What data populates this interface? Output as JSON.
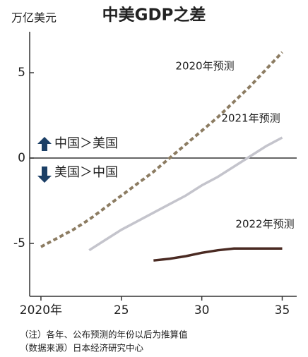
{
  "chart_data": {
    "type": "line",
    "title": "中美GDP之差",
    "y_label": "万亿美元",
    "x": [
      2020,
      2021,
      2022,
      2023,
      2024,
      2025,
      2026,
      2027,
      2028,
      2029,
      2030,
      2031,
      2032,
      2033,
      2034,
      2035
    ],
    "series": [
      {
        "name": "2020年预测",
        "color": "#8c7c62",
        "dashed": true,
        "values": [
          -5.2,
          -4.7,
          -4.2,
          -3.6,
          -2.9,
          -2.2,
          -1.5,
          -0.8,
          0,
          0.8,
          1.6,
          2.4,
          3.3,
          4.2,
          5.2,
          6.2
        ]
      },
      {
        "name": "2021年预测",
        "color": "#c4c4cc",
        "dashed": false,
        "values": [
          null,
          null,
          null,
          -5.4,
          -4.8,
          -4.2,
          -3.7,
          -3.2,
          -2.7,
          -2.2,
          -1.6,
          -1.1,
          -0.5,
          0.1,
          0.7,
          1.2
        ]
      },
      {
        "name": "2022年预测",
        "color": "#4a2a22",
        "dashed": false,
        "values": [
          null,
          null,
          null,
          null,
          null,
          null,
          null,
          -6.0,
          -5.9,
          -5.75,
          -5.55,
          -5.4,
          -5.3,
          -5.3,
          -5.3,
          -5.3
        ]
      }
    ],
    "xlim": [
      2019.3,
      2035.9
    ],
    "xticks": [
      {
        "value": 2020,
        "label": "2020年"
      },
      {
        "value": 2025,
        "label": "25"
      },
      {
        "value": 2030,
        "label": "30"
      },
      {
        "value": 2035,
        "label": "35"
      }
    ],
    "ylim": [
      -8.1,
      7.4
    ],
    "yticks": [
      -5,
      0,
      5
    ],
    "annotations": [
      "中国＞美国",
      "美国＞中国"
    ],
    "notes": [
      "（注）各年、公布预测的年份以后为推算值",
      "（数据来源）日本经济研究中心"
    ]
  }
}
